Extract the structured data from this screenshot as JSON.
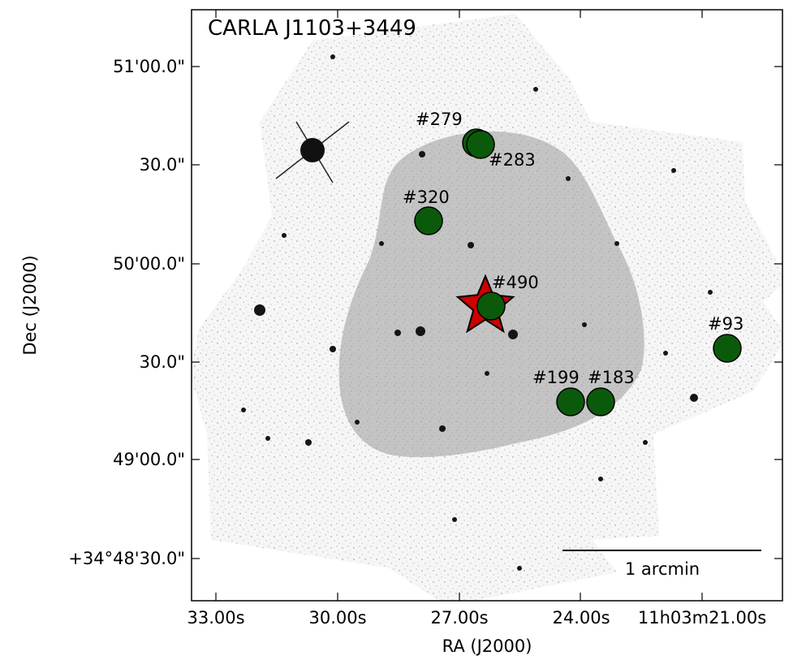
{
  "figure": {
    "title": "CARLA J1103+3449",
    "xlabel": "RA (J2000)",
    "ylabel": "Dec (J2000)",
    "x_ticks": [
      "33.00s",
      "30.00s",
      "27.00s",
      "24.00s",
      "11h03m21.00s"
    ],
    "y_ticks": [
      "51'00.0\"",
      "30.0\"",
      "50'00.0\"",
      "30.0\"",
      "49'00.0\"",
      "+34°48'30.0\""
    ],
    "scale_bar_label": "1 arcmin",
    "colors": {
      "marker_fill": "#0b5a0b",
      "star_fill": "#cc0000",
      "shaded_region": "#c4c4c4",
      "sky_background": "#f6f6f6"
    },
    "central_marker": {
      "label": "#490",
      "symbol": "star"
    },
    "objects": [
      {
        "label": "#279"
      },
      {
        "label": "#283"
      },
      {
        "label": "#320"
      },
      {
        "label": "#490"
      },
      {
        "label": "#93"
      },
      {
        "label": "#199"
      },
      {
        "label": "#183"
      }
    ]
  }
}
